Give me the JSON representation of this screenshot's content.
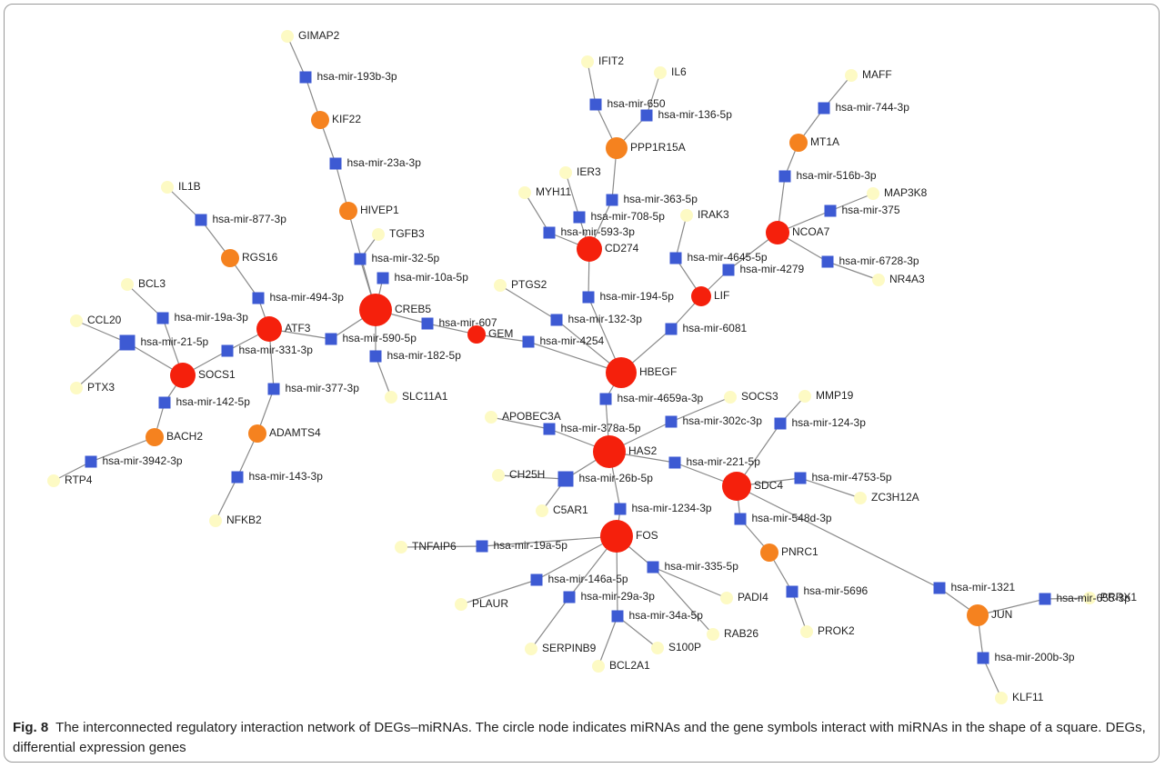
{
  "nodes": [
    "GIMAP2",
    "hsa-mir-193b-3p",
    "KIF22",
    "hsa-mir-23a-3p",
    "HIVEP1",
    "TGFB3",
    "hsa-mir-32-5p",
    "hsa-mir-10a-5p",
    "CREB5",
    "IL1B",
    "hsa-mir-877-3p",
    "RGS16",
    "hsa-mir-494-3p",
    "ATF3",
    "BCL3",
    "hsa-mir-19a-3p",
    "CCL20",
    "hsa-mir-21-5p",
    "PTX3",
    "SOCS1",
    "hsa-mir-331-3p",
    "hsa-mir-590-5p",
    "hsa-mir-142-5p",
    "BACH2",
    "hsa-mir-3942-3p",
    "RTP4",
    "hsa-mir-377-3p",
    "ADAMTS4",
    "hsa-mir-143-3p",
    "NFKB2",
    "hsa-mir-182-5p",
    "SLC11A1",
    "hsa-mir-607",
    "GEM",
    "hsa-mir-4254",
    "HBEGF",
    "PTGS2",
    "hsa-mir-132-3p",
    "hsa-mir-194-5p",
    "CD274",
    "MYH11",
    "hsa-mir-593-3p",
    "IER3",
    "hsa-mir-708-5p",
    "hsa-mir-363-5p",
    "PPP1R15A",
    "hsa-mir-650",
    "IFIT2",
    "hsa-mir-136-5p",
    "IL6",
    "IRAK3",
    "hsa-mir-4645-5p",
    "LIF",
    "hsa-mir-4279",
    "hsa-mir-6081",
    "NCOA7",
    "hsa-mir-516b-3p",
    "MT1A",
    "hsa-mir-744-3p",
    "MAFF",
    "MAP3K8",
    "hsa-mir-375",
    "hsa-mir-6728-3p",
    "NR4A3",
    "hsa-mir-4659a-3p",
    "HAS2",
    "APOBEC3A",
    "hsa-mir-378a-5p",
    "SOCS3",
    "hsa-mir-302c-3p",
    "MMP19",
    "hsa-mir-124-3p",
    "hsa-mir-221-5p",
    "SDC4",
    "hsa-mir-4753-5p",
    "ZC3H12A",
    "CH25H",
    "hsa-mir-26b-5p",
    "C5AR1",
    "hsa-mir-1234-3p",
    "FOS",
    "TNFAIP6",
    "hsa-mir-19a-5p",
    "hsa-mir-548d-3p",
    "PNRC1",
    "hsa-mir-5696",
    "PROK2",
    "hsa-mir-335-5p",
    "PADI4",
    "hsa-mir-146a-5p",
    "PLAUR",
    "hsa-mir-29a-3p",
    "SERPINB9",
    "hsa-mir-34a-5p",
    "RAB26",
    "S100P",
    "BCL2A1",
    "hsa-mir-1321",
    "JUN",
    "PRRX1",
    "hsa-mir-655-3p",
    "hsa-mir-200b-3p",
    "KLF11"
  ],
  "caption": {
    "label": "Fig. 8",
    "text": "The interconnected regulatory interaction network of DEGs–miRNAs. The circle node indicates miRNAs and the gene symbols interact with miRNAs in the shape of a square. DEGs, differential expression genes"
  }
}
